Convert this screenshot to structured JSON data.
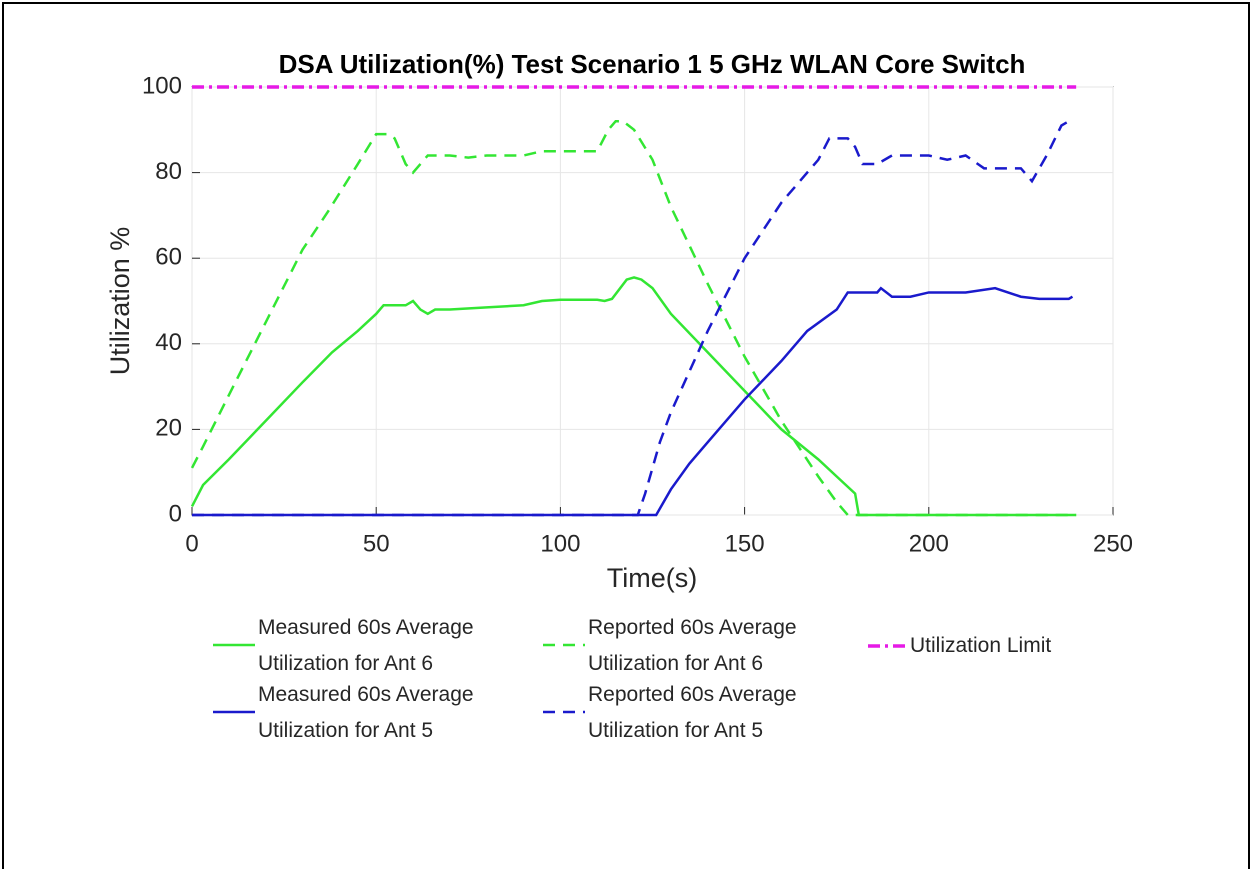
{
  "chart_data": {
    "type": "line",
    "title": "DSA Utilization(%) Test Scenario 1 5 GHz WLAN Core Switch",
    "x_label": "Time(s)",
    "y_label": "Utilization %",
    "xlim": [
      0,
      250
    ],
    "xticks": [
      0,
      50,
      100,
      150,
      200,
      250
    ],
    "ylim": [
      0,
      100
    ],
    "yticks": [
      0,
      20,
      40,
      60,
      80,
      100
    ],
    "grid": true,
    "series": [
      {
        "name": "Measured 60s Average Utilization for Ant 6",
        "color": "#33e633",
        "dash": "solid",
        "x": [
          0,
          3,
          10,
          20,
          30,
          38,
          45,
          50,
          52,
          58,
          60,
          62,
          64,
          66,
          70,
          80,
          90,
          95,
          100,
          110,
          112,
          114,
          118,
          120,
          122,
          125,
          130,
          140,
          150,
          160,
          170,
          175,
          180,
          181,
          240
        ],
        "values": [
          2,
          7,
          13,
          22,
          31,
          38,
          43,
          47,
          49,
          49,
          50,
          48,
          47,
          48,
          48,
          48.5,
          49,
          50,
          50.3,
          50.3,
          50,
          50.5,
          55,
          55.5,
          55,
          53,
          47,
          38,
          29,
          20,
          13,
          9,
          5,
          0,
          0
        ]
      },
      {
        "name": "Reported 60s Average Utilization for Ant 6",
        "color": "#33e633",
        "dash": "dashed",
        "x": [
          0,
          3,
          10,
          20,
          30,
          37,
          45,
          50,
          53,
          55,
          58,
          60,
          64,
          70,
          75,
          80,
          90,
          95,
          100,
          110,
          113,
          115,
          117,
          120,
          125,
          130,
          140,
          150,
          160,
          170,
          175,
          178,
          240
        ],
        "values": [
          11,
          16,
          28,
          45,
          62,
          71,
          82,
          89,
          89,
          88,
          82,
          80,
          84,
          84,
          83.5,
          84,
          84,
          85,
          85,
          85,
          90,
          92,
          92,
          90,
          83,
          72,
          54,
          37,
          22,
          9,
          3,
          0,
          0
        ]
      },
      {
        "name": "Measured 60s Average Utilization for Ant 5",
        "color": "#1a1acc",
        "dash": "solid",
        "x": [
          0,
          126,
          130,
          135,
          140,
          150,
          160,
          167,
          175,
          178,
          186,
          187,
          190,
          195,
          200,
          210,
          218,
          225,
          230,
          238,
          239
        ],
        "values": [
          0,
          0,
          6,
          12,
          17,
          27,
          36,
          43,
          48,
          52,
          52,
          53,
          51,
          51,
          52,
          52,
          53,
          51,
          50.5,
          50.5,
          51
        ]
      },
      {
        "name": "Reported 60s Average Utilization for Ant 5",
        "color": "#1a1acc",
        "dash": "dashed",
        "x": [
          0,
          121,
          123,
          127,
          130,
          140,
          150,
          160,
          165,
          170,
          173,
          178,
          180,
          182,
          186,
          190,
          200,
          205,
          210,
          215,
          225,
          228,
          232,
          236,
          238,
          239
        ],
        "values": [
          0,
          0,
          5,
          17,
          24,
          43,
          60,
          73,
          78,
          83,
          88,
          88,
          86,
          82,
          82,
          84,
          84,
          83,
          84,
          81,
          81,
          78,
          84,
          91,
          92,
          91.5
        ]
      },
      {
        "name": "Utilization Limit",
        "color": "#e61ae6",
        "dash": "dashdot",
        "x": [
          0,
          240
        ],
        "values": [
          100,
          100
        ]
      }
    ]
  }
}
